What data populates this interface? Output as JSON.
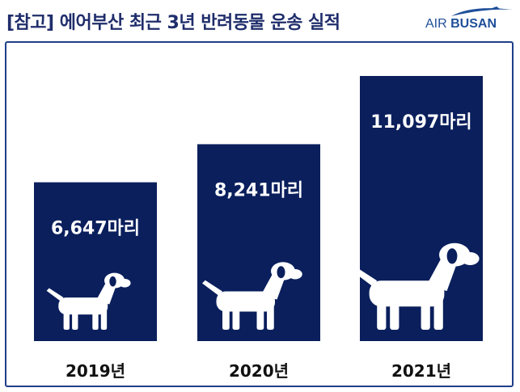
{
  "header": {
    "title": "[참고] 에어부산 최근 3년 반려동물 운송 실적",
    "logo_word_1": "AIR",
    "logo_word_2": "BUSAN"
  },
  "colors": {
    "bar": "#0a1f5c",
    "title": "#1f2d6b",
    "logo": "#1f4f9a",
    "frame": "#1f3f8a"
  },
  "icon": "dog-icon",
  "chart_data": {
    "type": "bar",
    "categories": [
      "2019년",
      "2020년",
      "2021년"
    ],
    "values": [
      6647,
      8241,
      11097
    ],
    "data_labels": [
      "6,647마리",
      "8,241마리",
      "11,097마리"
    ],
    "title": "",
    "xlabel": "",
    "ylabel": "",
    "grid": false,
    "legend": "none"
  }
}
